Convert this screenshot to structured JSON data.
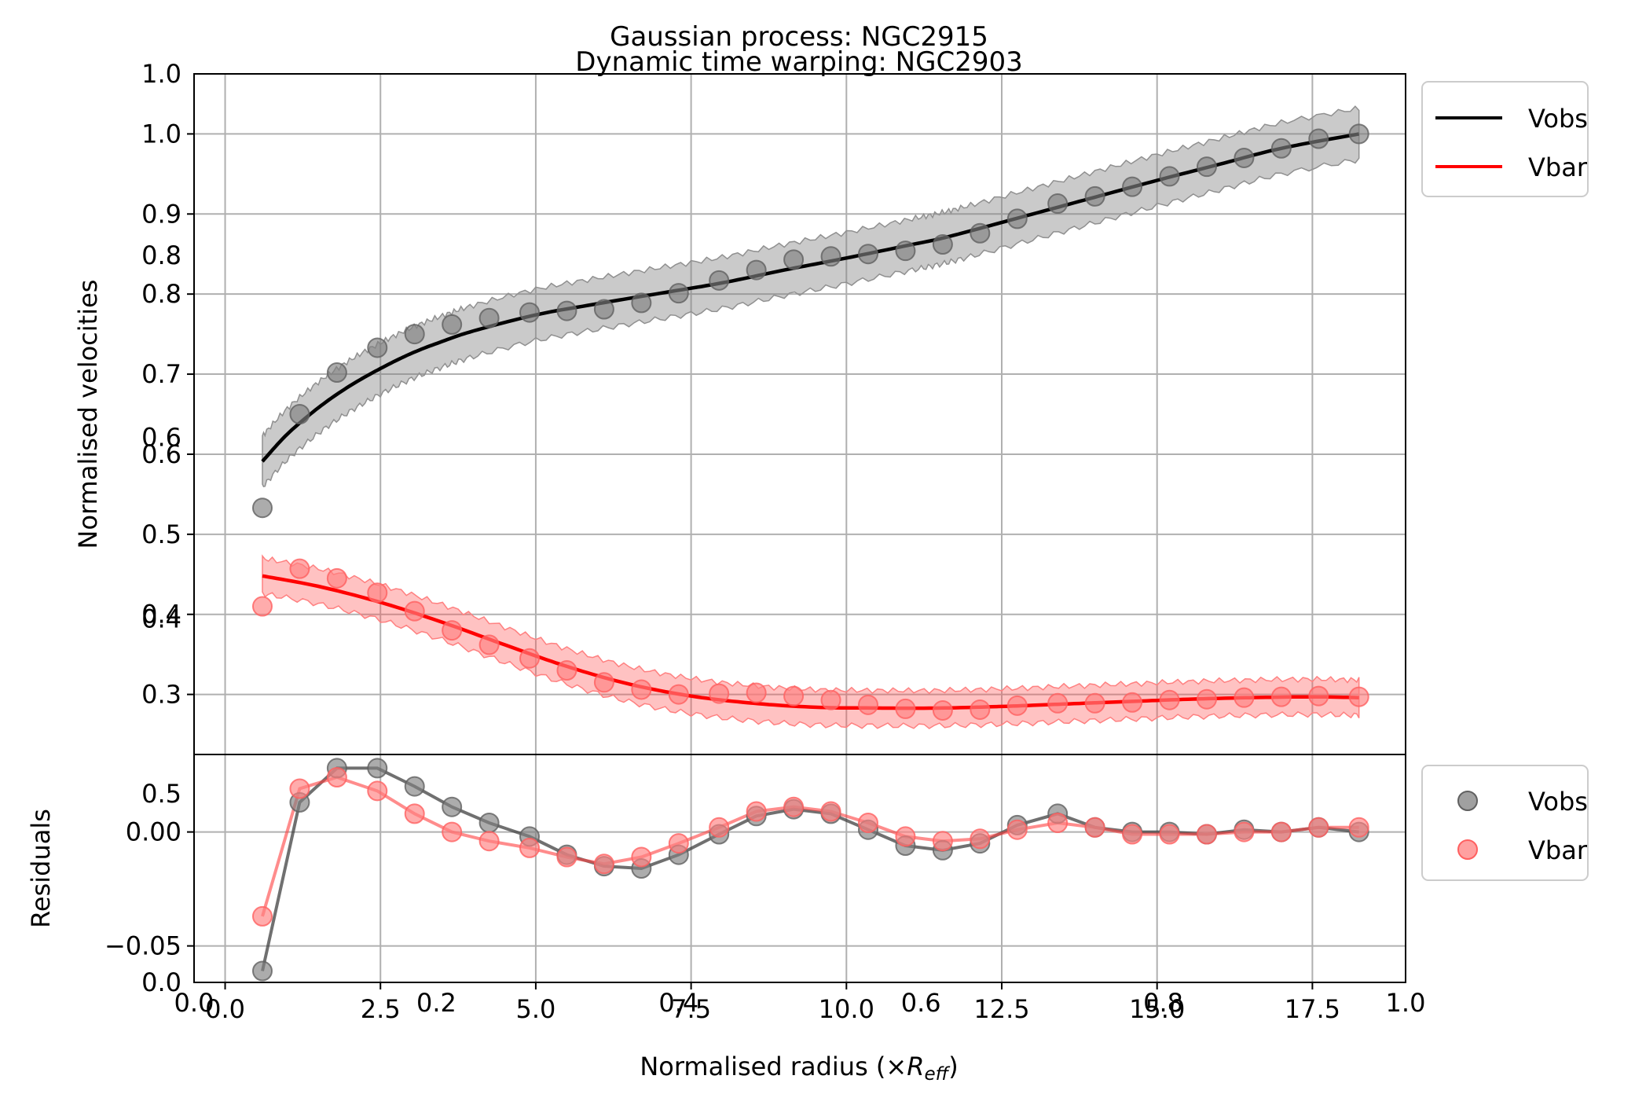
{
  "titles": {
    "top": "Gaussian process: NGC2915",
    "overlap": "Dynamic time warping: NGC2903"
  },
  "axes": {
    "xlabel": "Normalised radius (×",
    "xlabel_sym": "R",
    "xlabel_sub": "eff",
    "xlabel_close": ")",
    "ylabel_top": "Normalised velocities",
    "ylabel_bottom": "Residuals",
    "x_ticks": [
      "0.0",
      "2.5",
      "5.0",
      "7.5",
      "10.0",
      "12.5",
      "15.0",
      "17.5"
    ],
    "x_tick_values": [
      0,
      2.5,
      5,
      7.5,
      10,
      12.5,
      15,
      17.5
    ],
    "x_ghost_ticks": [
      "0.0",
      "0.2",
      "0.4",
      "0.6",
      "0.8",
      "1.0"
    ],
    "top_y_ticks": [
      "0.3",
      "0.4",
      "0.5",
      "0.6",
      "0.7",
      "0.8",
      "0.9",
      "1.0"
    ],
    "top_y_tick_values": [
      0.3,
      0.4,
      0.5,
      0.6,
      0.7,
      0.8,
      0.9,
      1.0
    ],
    "top_ghost_ticks": [
      "0.4",
      "0.6",
      "0.8",
      "1.0"
    ],
    "bottom_y_ticks": [
      "−0.05",
      "0.00"
    ],
    "bottom_y_tick_values": [
      -0.05,
      0.0
    ],
    "bottom_ghost_ticks": [
      "0.0",
      "0.5"
    ]
  },
  "legend_top": [
    {
      "label": "Vobs",
      "color": "#000000",
      "marker": "line"
    },
    {
      "label": "Vbar",
      "color": "#ff0000",
      "marker": "line"
    }
  ],
  "legend_bottom": [
    {
      "label": "Vobs",
      "color": "#808080",
      "marker": "dot"
    },
    {
      "label": "Vbar",
      "color": "#ff8080",
      "marker": "dot"
    }
  ],
  "chart_data": [
    {
      "type": "line",
      "panel": "top",
      "title": "Gaussian process: NGC2915",
      "xlabel": "Normalised radius (×R_eff)",
      "ylabel": "Normalised velocities",
      "xlim": [
        -0.5,
        19.0
      ],
      "ylim": [
        0.225,
        1.075
      ],
      "grid": true,
      "legend_position": "outside upper right",
      "x": [
        0.6,
        1.2,
        1.8,
        2.45,
        3.05,
        3.65,
        4.25,
        4.9,
        5.5,
        6.1,
        6.7,
        7.3,
        7.95,
        8.55,
        9.15,
        9.75,
        10.35,
        10.95,
        11.55,
        12.15,
        12.75,
        13.4,
        14.0,
        14.6,
        15.2,
        15.8,
        16.4,
        17.0,
        17.6,
        18.25
      ],
      "series": [
        {
          "name": "Vobs",
          "color": "#000000",
          "points": [
            0.533,
            0.65,
            0.702,
            0.733,
            0.75,
            0.762,
            0.77,
            0.777,
            0.779,
            0.781,
            0.789,
            0.801,
            0.817,
            0.83,
            0.843,
            0.847,
            0.85,
            0.854,
            0.862,
            0.876,
            0.894,
            0.913,
            0.922,
            0.934,
            0.947,
            0.959,
            0.97,
            0.982,
            0.994,
            1.0
          ],
          "fit_x": [
            0.6,
            1.0,
            1.5,
            2.0,
            2.5,
            3.0,
            3.5,
            4.0,
            5.0,
            6.0,
            7.0,
            8.0,
            9.0,
            10.0,
            11.0,
            11.5,
            12.0,
            13.0,
            14.0,
            15.0,
            16.0,
            17.0,
            18.25
          ],
          "fit": [
            0.591,
            0.625,
            0.658,
            0.685,
            0.707,
            0.726,
            0.741,
            0.754,
            0.774,
            0.788,
            0.801,
            0.814,
            0.83,
            0.845,
            0.861,
            0.869,
            0.879,
            0.9,
            0.921,
            0.942,
            0.962,
            0.982,
            1.0
          ],
          "band_halfwidth": 0.032
        },
        {
          "name": "Vbar",
          "color": "#ff0000",
          "points": [
            0.41,
            0.457,
            0.445,
            0.427,
            0.404,
            0.38,
            0.362,
            0.345,
            0.33,
            0.315,
            0.306,
            0.3,
            0.301,
            0.302,
            0.298,
            0.293,
            0.287,
            0.282,
            0.28,
            0.281,
            0.286,
            0.289,
            0.289,
            0.29,
            0.293,
            0.294,
            0.296,
            0.297,
            0.298,
            0.297
          ],
          "fit_x": [
            0.6,
            1.5,
            2.5,
            3.5,
            4.5,
            5.5,
            6.5,
            7.5,
            8.5,
            9.5,
            10.5,
            11.5,
            12.5,
            13.5,
            14.5,
            15.5,
            16.5,
            17.5,
            18.25
          ],
          "fit": [
            0.448,
            0.435,
            0.415,
            0.39,
            0.362,
            0.335,
            0.313,
            0.298,
            0.289,
            0.284,
            0.283,
            0.283,
            0.285,
            0.288,
            0.291,
            0.294,
            0.296,
            0.297,
            0.296
          ],
          "band_halfwidth": 0.022
        }
      ]
    },
    {
      "type": "line",
      "panel": "bottom",
      "ylabel": "Residuals",
      "xlim": [
        -0.5,
        19.0
      ],
      "ylim": [
        -0.066,
        0.034
      ],
      "grid": true,
      "legend_position": "outside right",
      "x": [
        0.6,
        1.2,
        1.8,
        2.45,
        3.05,
        3.65,
        4.25,
        4.9,
        5.5,
        6.1,
        6.7,
        7.3,
        7.95,
        8.55,
        9.15,
        9.75,
        10.35,
        10.95,
        11.55,
        12.15,
        12.75,
        13.4,
        14.0,
        14.6,
        15.2,
        15.8,
        16.4,
        17.0,
        17.6,
        18.25
      ],
      "series": [
        {
          "name": "Vobs",
          "color": "#404040",
          "values": [
            -0.061,
            0.013,
            0.028,
            0.028,
            0.02,
            0.011,
            0.004,
            -0.002,
            -0.01,
            -0.015,
            -0.016,
            -0.01,
            -0.001,
            0.007,
            0.01,
            0.008,
            0.001,
            -0.006,
            -0.008,
            -0.005,
            0.003,
            0.008,
            0.002,
            0.0,
            0.0,
            -0.001,
            0.001,
            0.0,
            0.002,
            0.0
          ]
        },
        {
          "name": "Vbar",
          "color": "#ff4040",
          "values": [
            -0.037,
            0.019,
            0.024,
            0.018,
            0.008,
            0.0,
            -0.004,
            -0.007,
            -0.011,
            -0.014,
            -0.011,
            -0.005,
            0.002,
            0.009,
            0.011,
            0.009,
            0.004,
            -0.002,
            -0.004,
            -0.003,
            0.001,
            0.004,
            0.002,
            -0.001,
            -0.001,
            -0.001,
            0.0,
            0.0,
            0.002,
            0.002
          ]
        }
      ]
    }
  ]
}
